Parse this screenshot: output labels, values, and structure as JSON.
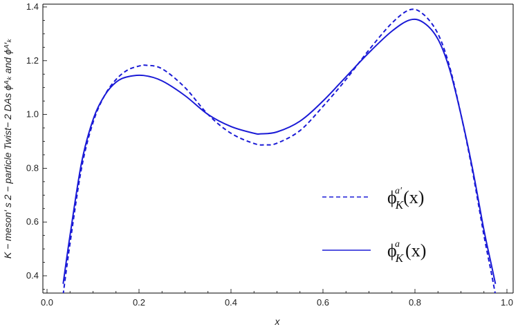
{
  "chart_data": {
    "type": "line",
    "xlabel": "x",
    "ylabel": "K − meson′ s 2 − particle Twist− 2 DAs ϕᴬₖ and ϕᴬ′ₖ",
    "xlim": [
      0.0,
      1.0
    ],
    "ylim": [
      0.33,
      1.4
    ],
    "x_ticks": [
      0.0,
      0.2,
      0.4,
      0.6,
      0.8,
      1.0
    ],
    "x_tick_labels": [
      "0.0",
      "0.2",
      "0.4",
      "0.6",
      "0.8",
      "1.0"
    ],
    "y_ticks": [
      0.4,
      0.6,
      0.8,
      1.0,
      1.2,
      1.4
    ],
    "y_tick_labels": [
      "0.4",
      "0.6",
      "0.8",
      "1.0",
      "1.2",
      "1.4"
    ],
    "grid": false,
    "legend_position": "right",
    "series": [
      {
        "name": "ϕᴬ′ₖ(x)",
        "legend_main": "ϕ",
        "legend_sub": "K",
        "legend_sup": "a′",
        "legend_arg": "(x)",
        "style": "dashed",
        "color": "#1a1ad6",
        "x": [
          0.035,
          0.05,
          0.075,
          0.1,
          0.125,
          0.15,
          0.175,
          0.2,
          0.215,
          0.25,
          0.3,
          0.35,
          0.4,
          0.45,
          0.475,
          0.5,
          0.55,
          0.6,
          0.65,
          0.7,
          0.75,
          0.79,
          0.82,
          0.85,
          0.875,
          0.9,
          0.925,
          0.95,
          0.965,
          0.975
        ],
        "y": [
          0.33,
          0.52,
          0.8,
          0.97,
          1.07,
          1.13,
          1.165,
          1.18,
          1.183,
          1.17,
          1.1,
          1.0,
          0.93,
          0.892,
          0.887,
          0.893,
          0.94,
          1.03,
          1.13,
          1.24,
          1.34,
          1.39,
          1.37,
          1.3,
          1.18,
          1.0,
          0.79,
          0.55,
          0.42,
          0.33
        ]
      },
      {
        "name": "ϕᴬₖ(x)",
        "legend_main": "ϕ",
        "legend_sub": "K",
        "legend_sup": "a",
        "legend_arg": "(x)",
        "style": "solid",
        "color": "#1a1ad6",
        "x": [
          0.035,
          0.05,
          0.075,
          0.1,
          0.125,
          0.15,
          0.175,
          0.21,
          0.25,
          0.3,
          0.35,
          0.4,
          0.45,
          0.465,
          0.5,
          0.55,
          0.6,
          0.65,
          0.7,
          0.75,
          0.79,
          0.82,
          0.85,
          0.875,
          0.9,
          0.925,
          0.95,
          0.965,
          0.975
        ],
        "y": [
          0.37,
          0.55,
          0.82,
          0.98,
          1.07,
          1.12,
          1.14,
          1.145,
          1.125,
          1.07,
          1.0,
          0.955,
          0.93,
          0.928,
          0.935,
          0.975,
          1.05,
          1.14,
          1.23,
          1.31,
          1.352,
          1.34,
          1.28,
          1.17,
          1.0,
          0.8,
          0.57,
          0.45,
          0.37
        ]
      }
    ]
  }
}
